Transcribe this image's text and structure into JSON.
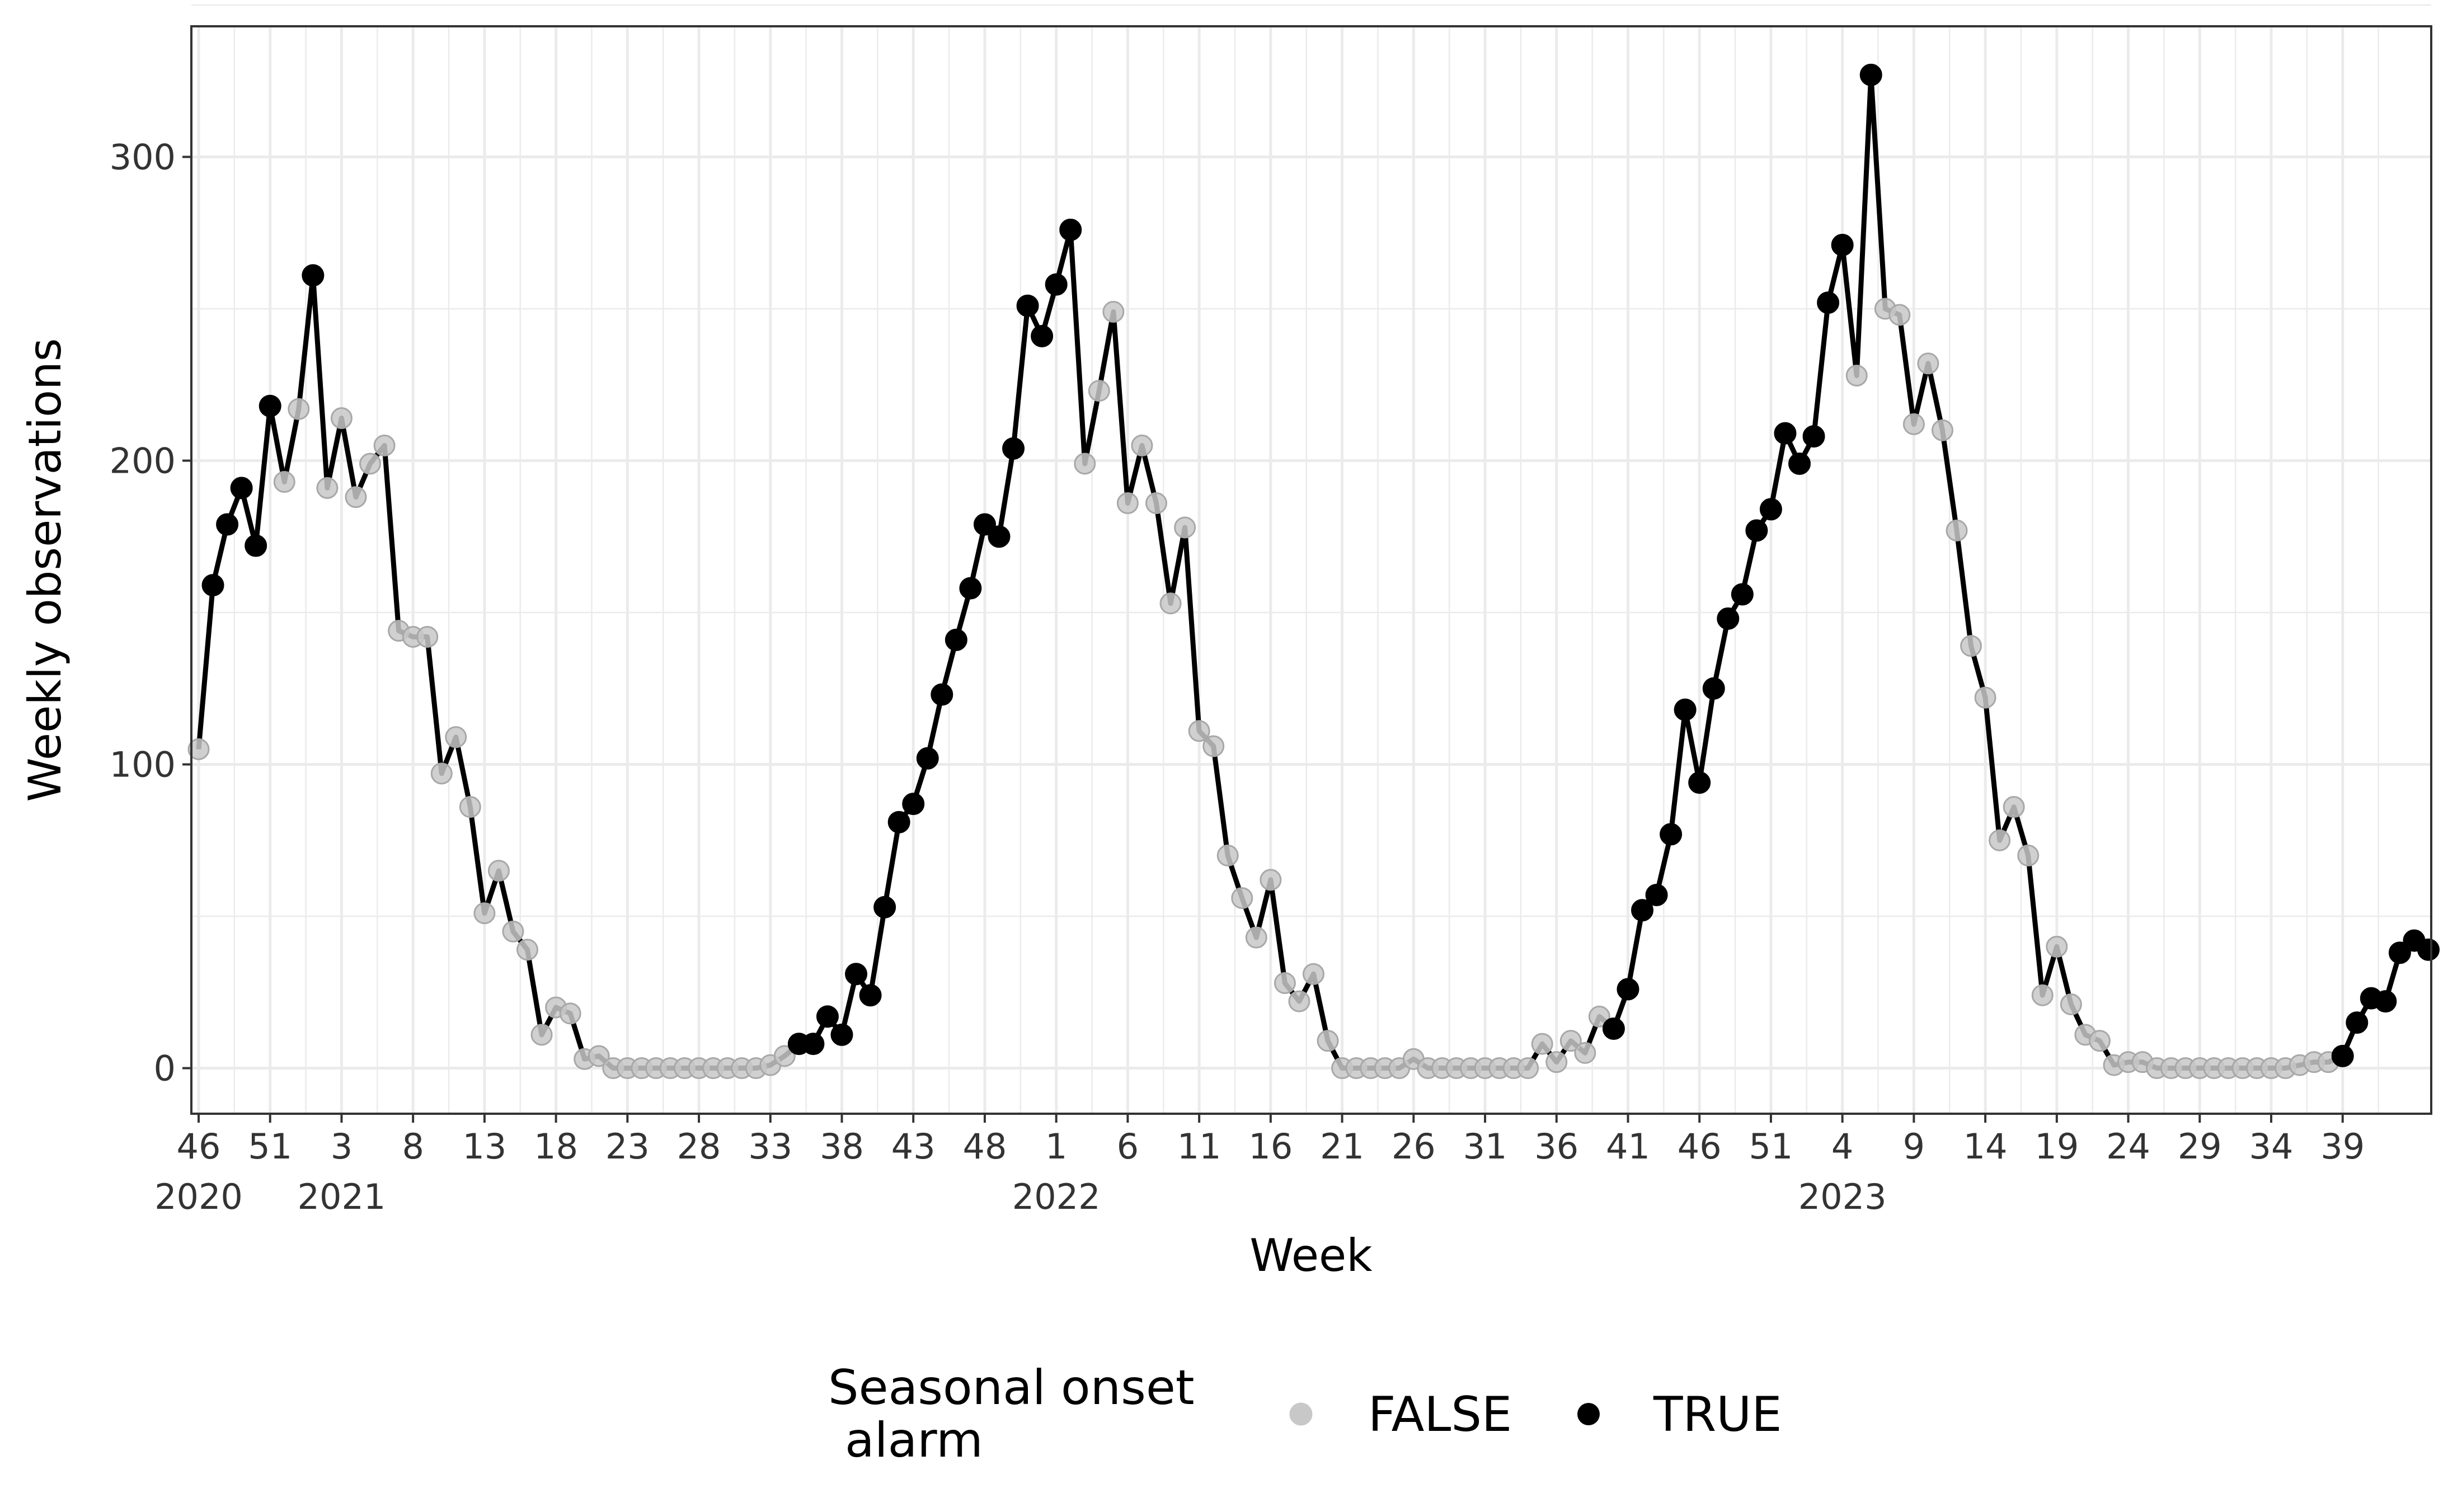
{
  "chart_data": {
    "type": "line",
    "title": "",
    "xlabel": "Week",
    "ylabel": "Weekly observations",
    "ylim": [
      -15,
      343
    ],
    "y_ticks": [
      0,
      100,
      200,
      300
    ],
    "x_ticks": [
      {
        "week": "46",
        "year": "2020"
      },
      {
        "week": "51",
        "year": ""
      },
      {
        "week": "3",
        "year": "2021"
      },
      {
        "week": "8",
        "year": ""
      },
      {
        "week": "13",
        "year": ""
      },
      {
        "week": "18",
        "year": ""
      },
      {
        "week": "23",
        "year": ""
      },
      {
        "week": "28",
        "year": ""
      },
      {
        "week": "33",
        "year": ""
      },
      {
        "week": "38",
        "year": ""
      },
      {
        "week": "43",
        "year": ""
      },
      {
        "week": "48",
        "year": ""
      },
      {
        "week": "1",
        "year": "2022"
      },
      {
        "week": "6",
        "year": ""
      },
      {
        "week": "11",
        "year": ""
      },
      {
        "week": "16",
        "year": ""
      },
      {
        "week": "21",
        "year": ""
      },
      {
        "week": "26",
        "year": ""
      },
      {
        "week": "31",
        "year": ""
      },
      {
        "week": "36",
        "year": ""
      },
      {
        "week": "41",
        "year": ""
      },
      {
        "week": "46",
        "year": ""
      },
      {
        "week": "51",
        "year": ""
      },
      {
        "week": "4",
        "year": "2023"
      },
      {
        "week": "9",
        "year": ""
      },
      {
        "week": "14",
        "year": ""
      },
      {
        "week": "19",
        "year": ""
      },
      {
        "week": "24",
        "year": ""
      },
      {
        "week": "29",
        "year": ""
      },
      {
        "week": "34",
        "year": ""
      },
      {
        "week": "39",
        "year": ""
      }
    ],
    "grid": true,
    "legend_position": "bottom",
    "legend": {
      "title_line1": "Seasonal onset",
      "title_line2": "alarm",
      "entries": [
        {
          "label": "FALSE",
          "color": "#c8c8c8"
        },
        {
          "label": "TRUE",
          "color": "#000000"
        }
      ]
    },
    "colors": {
      "line": "#000000",
      "false_point": "#c8c8c8",
      "true_point": "#000000",
      "grid": "#ebebeb"
    },
    "y_values": [
      105,
      159,
      179,
      191,
      172,
      218,
      193,
      217,
      261,
      191,
      214,
      188,
      199,
      205,
      144,
      142,
      142,
      97,
      109,
      86,
      51,
      65,
      45,
      39,
      11,
      20,
      18,
      3,
      4,
      0,
      0,
      0,
      0,
      0,
      0,
      0,
      0,
      0,
      0,
      0,
      1,
      4,
      8,
      8,
      17,
      11,
      31,
      24,
      53,
      81,
      87,
      102,
      123,
      141,
      158,
      179,
      175,
      204,
      251,
      241,
      258,
      276,
      199,
      223,
      249,
      186,
      205,
      186,
      153,
      178,
      111,
      106,
      70,
      56,
      43,
      62,
      28,
      22,
      31,
      9,
      0,
      0,
      0,
      0,
      0,
      3,
      0,
      0,
      0,
      0,
      0,
      0,
      0,
      0,
      8,
      2,
      9,
      5,
      17,
      13,
      26,
      52,
      57,
      77,
      118,
      94,
      125,
      148,
      156,
      177,
      184,
      209,
      199,
      208,
      252,
      271,
      228,
      327,
      250,
      248,
      212,
      232,
      210,
      177,
      139,
      122,
      75,
      86,
      70,
      24,
      40,
      21,
      11,
      9,
      1,
      2,
      2,
      0,
      0,
      0,
      0,
      0,
      0,
      0,
      0,
      0,
      0,
      1,
      2,
      2,
      4,
      15,
      23,
      22,
      38,
      42,
      39
    ],
    "alarm": [
      0,
      1,
      1,
      1,
      1,
      1,
      0,
      0,
      1,
      0,
      0,
      0,
      0,
      0,
      0,
      0,
      0,
      0,
      0,
      0,
      0,
      0,
      0,
      0,
      0,
      0,
      0,
      0,
      0,
      0,
      0,
      0,
      0,
      0,
      0,
      0,
      0,
      0,
      0,
      0,
      0,
      0,
      1,
      1,
      1,
      1,
      1,
      1,
      1,
      1,
      1,
      1,
      1,
      1,
      1,
      1,
      1,
      1,
      1,
      1,
      1,
      1,
      0,
      0,
      0,
      0,
      0,
      0,
      0,
      0,
      0,
      0,
      0,
      0,
      0,
      0,
      0,
      0,
      0,
      0,
      0,
      0,
      0,
      0,
      0,
      0,
      0,
      0,
      0,
      0,
      0,
      0,
      0,
      0,
      0,
      0,
      0,
      0,
      0,
      1,
      1,
      1,
      1,
      1,
      1,
      1,
      1,
      1,
      1,
      1,
      1,
      1,
      1,
      1,
      1,
      1,
      0,
      1,
      0,
      0,
      0,
      0,
      0,
      0,
      0,
      0,
      0,
      0,
      0,
      0,
      0,
      0,
      0,
      0,
      0,
      0,
      0,
      0,
      0,
      0,
      0,
      0,
      0,
      0,
      0,
      0,
      0,
      0,
      0,
      0,
      1,
      1,
      1,
      1,
      1,
      1,
      1
    ]
  }
}
